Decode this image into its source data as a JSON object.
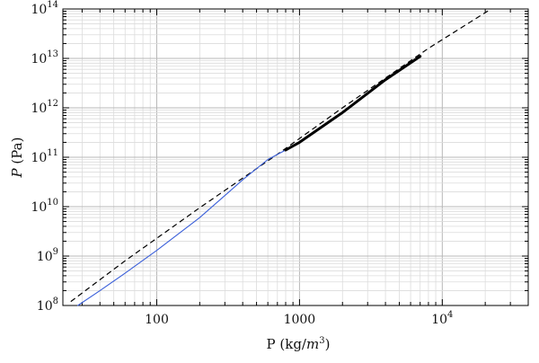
{
  "chart_data": {
    "type": "line",
    "xscale": "log",
    "yscale": "log",
    "xlim": [
      22,
      40000
    ],
    "ylim": [
      100000000,
      100000000000000
    ],
    "grid": true,
    "xlabel": {
      "main": "P (kg/",
      "italic": "m",
      "sup": "3",
      "end": ")"
    },
    "ylabel": {
      "italic": "P",
      "rest": " (Pa)"
    },
    "x_tick_labels": [
      {
        "value": 100,
        "text": "100"
      },
      {
        "value": 1000,
        "text": "1000"
      },
      {
        "value": 10000,
        "base": "10",
        "sup": "4"
      }
    ],
    "y_tick_labels": [
      {
        "value": 100000000,
        "base": "10",
        "sup": "8"
      },
      {
        "value": 1000000000,
        "base": "10",
        "sup": "9"
      },
      {
        "value": 10000000000,
        "base": "10",
        "sup": "10"
      },
      {
        "value": 100000000000,
        "base": "10",
        "sup": "11"
      },
      {
        "value": 1000000000000,
        "base": "10",
        "sup": "12"
      },
      {
        "value": 10000000000000,
        "base": "10",
        "sup": "13"
      },
      {
        "value": 100000000000000,
        "base": "10",
        "sup": "14"
      }
    ],
    "series": [
      {
        "style": "dashed",
        "color": "#000000",
        "x": [
          25,
          60,
          200,
          700,
          2000,
          8000,
          22000
        ],
        "y": [
          120000000,
          800000000,
          9500000000,
          115000000000,
          1000000000000,
          16000000000000,
          100000000000000
        ]
      },
      {
        "style": "solid",
        "color": "#3a5fd9",
        "x": [
          28,
          40,
          60,
          100,
          200,
          400,
          600,
          800
        ],
        "y": [
          100000000,
          200000000,
          450000000,
          1300000000,
          6000000000,
          35000000000,
          90000000000,
          140000000000
        ]
      },
      {
        "style": "thick",
        "color": "#000000",
        "x": [
          800,
          1000,
          2000,
          4000,
          7000
        ],
        "y": [
          140000000000,
          200000000000,
          800000000000,
          3700000000000,
          11000000000000
        ]
      }
    ]
  }
}
